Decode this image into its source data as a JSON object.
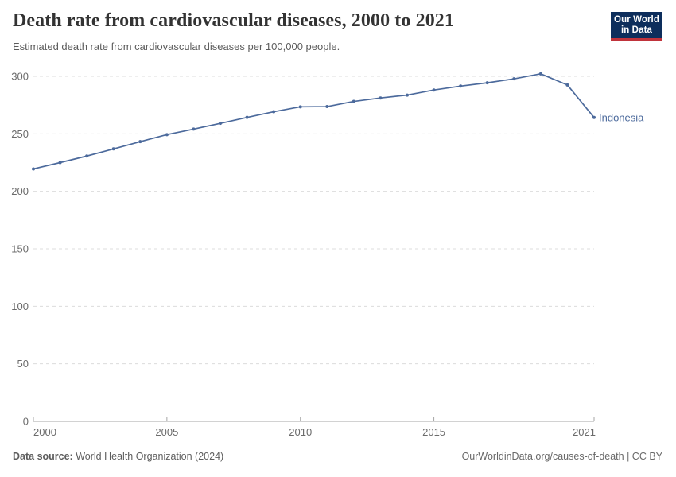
{
  "logo": {
    "line1": "Our World",
    "line2": "in Data"
  },
  "chart_data": {
    "type": "line",
    "title": "Death rate from cardiovascular diseases, 2000 to 2021",
    "subtitle": "Estimated death rate from cardiovascular diseases per 100,000 people.",
    "xlim": [
      2000,
      2021
    ],
    "ylim": [
      0,
      300
    ],
    "x_ticks": [
      2000,
      2005,
      2010,
      2015,
      2021
    ],
    "y_ticks": [
      0,
      50,
      100,
      150,
      200,
      250,
      300
    ],
    "grid": "horizontal-dashed",
    "legend_position": "end-of-line-label",
    "series": [
      {
        "name": "Indonesia",
        "color": "#4c6a9c",
        "x": [
          2000,
          2001,
          2002,
          2003,
          2004,
          2005,
          2006,
          2007,
          2008,
          2009,
          2010,
          2011,
          2012,
          2013,
          2014,
          2015,
          2016,
          2017,
          2018,
          2019,
          2020,
          2021
        ],
        "values": [
          219.5,
          225.0,
          230.7,
          236.9,
          243.2,
          249.3,
          254.1,
          259.1,
          264.3,
          269.2,
          273.5,
          273.7,
          278.2,
          281.2,
          283.7,
          288.1,
          291.5,
          294.4,
          297.8,
          302.2,
          292.5,
          264.2
        ]
      }
    ]
  },
  "footer": {
    "datasource_label": "Data source:",
    "datasource_value": "World Health Organization (2024)",
    "credit": "OurWorldinData.org/causes-of-death | CC BY"
  },
  "colors": {
    "line": "#4c6a9c",
    "grid": "#dcdcdc",
    "axis": "#a6a6a6",
    "tick_text": "#6b6b6b",
    "logo_bg": "#0d2e5c",
    "logo_stripe": "#c0333b"
  }
}
